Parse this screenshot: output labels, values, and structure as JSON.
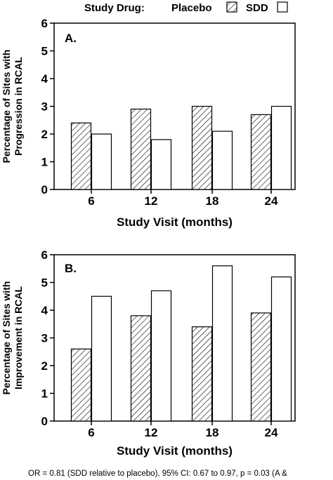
{
  "legend": {
    "title": "Study Drug:",
    "entries": [
      "Placebo",
      "SDD"
    ]
  },
  "footnote": "OR = 0.81 (SDD relative to placebo), 95% CI: 0.67 to 0.97, p = 0.03 (A &",
  "chart_data": [
    {
      "type": "bar",
      "panel_label": "A.",
      "categories": [
        "6",
        "12",
        "18",
        "24"
      ],
      "series": [
        {
          "name": "Placebo",
          "values": [
            2.4,
            2.9,
            3.0,
            2.7
          ],
          "fill": "diagonal-hatch"
        },
        {
          "name": "SDD",
          "values": [
            2.0,
            1.8,
            2.1,
            3.0
          ],
          "fill": "white"
        }
      ],
      "xlabel": "Study Visit (months)",
      "ylabel": [
        "Percentage of Sites with",
        "Progression in RCAL"
      ],
      "ylim": [
        0,
        6
      ],
      "yticks": [
        "0",
        "1",
        "2",
        "3",
        "4",
        "5",
        "6"
      ],
      "grid": false
    },
    {
      "type": "bar",
      "panel_label": "B.",
      "categories": [
        "6",
        "12",
        "18",
        "24"
      ],
      "series": [
        {
          "name": "Placebo",
          "values": [
            2.6,
            3.8,
            3.4,
            3.9
          ],
          "fill": "diagonal-hatch"
        },
        {
          "name": "SDD",
          "values": [
            4.5,
            4.7,
            5.6,
            5.2
          ],
          "fill": "white"
        }
      ],
      "xlabel": "Study Visit (months)",
      "ylabel": [
        "Percentage of Sites with",
        "Improvement in RCAL"
      ],
      "ylim": [
        0,
        6
      ],
      "yticks": [
        "0",
        "1",
        "2",
        "3",
        "4",
        "5",
        "6"
      ],
      "grid": false
    }
  ]
}
